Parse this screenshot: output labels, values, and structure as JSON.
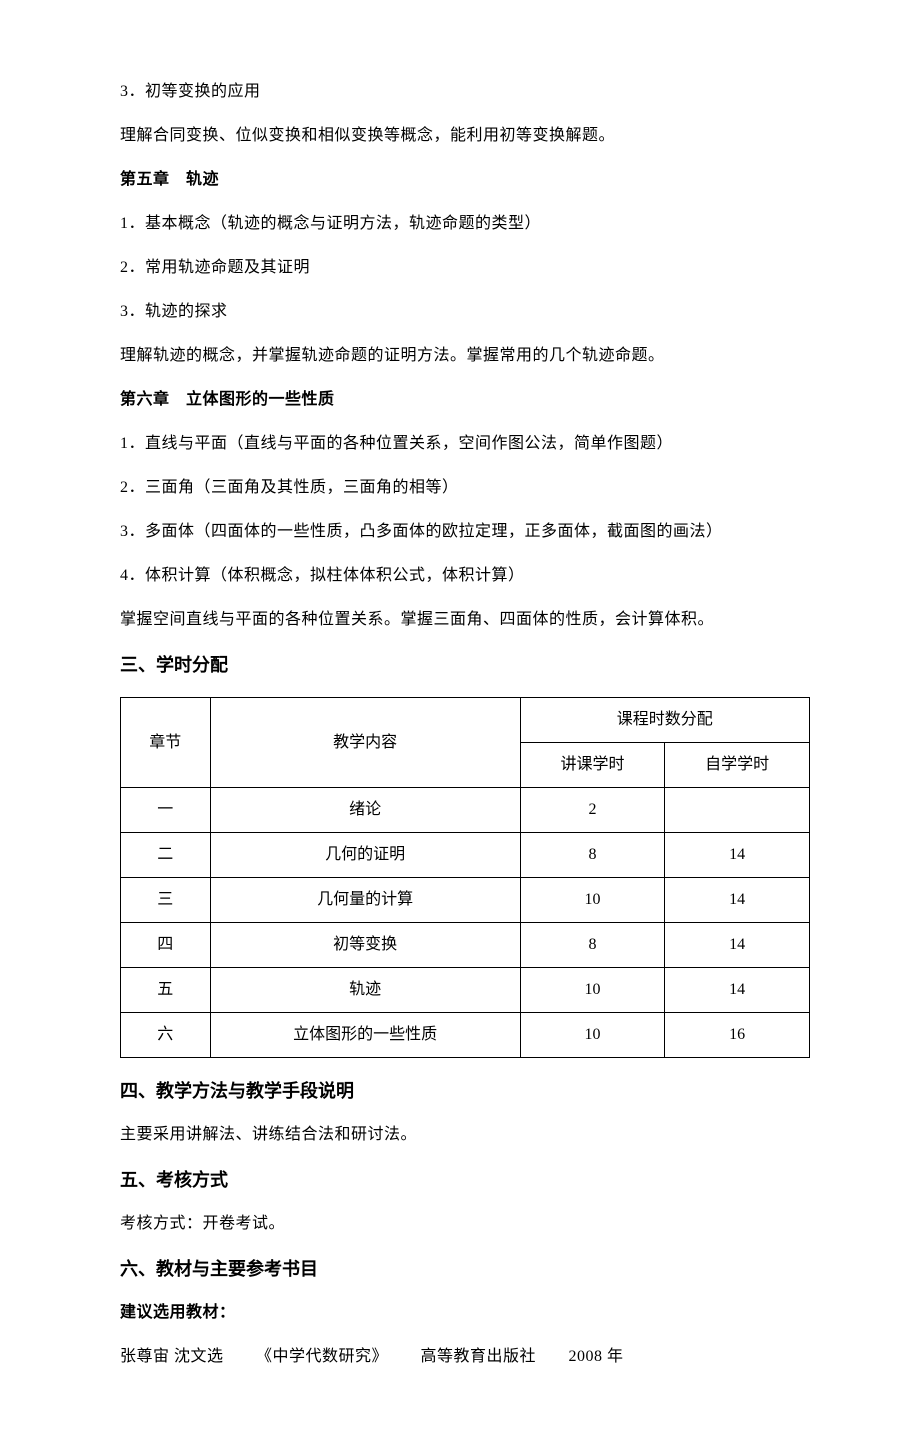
{
  "para": {
    "p1": "3．初等变换的应用",
    "p2": "理解合同变换、位似变换和相似变换等概念，能利用初等变换解题。",
    "ch5_title": "第五章　轨迹",
    "p3": "1．基本概念（轨迹的概念与证明方法，轨迹命题的类型）",
    "p4": "2．常用轨迹命题及其证明",
    "p5": "3．轨迹的探求",
    "p6": "理解轨迹的概念，并掌握轨迹命题的证明方法。掌握常用的几个轨迹命题。",
    "ch6_title": "第六章　立体图形的一些性质",
    "p7": "1．直线与平面（直线与平面的各种位置关系，空间作图公法，简单作图题）",
    "p8": "2．三面角（三面角及其性质，三面角的相等）",
    "p9": "3．多面体（四面体的一些性质，凸多面体的欧拉定理，正多面体，截面图的画法）",
    "p10": "4．体积计算（体积概念，拟柱体体积公式，体积计算）",
    "p11": "掌握空间直线与平面的各种位置关系。掌握三面角、四面体的性质，会计算体积。"
  },
  "sections": {
    "s3": "三、学时分配",
    "s4": "四、教学方法与教学手段说明",
    "s4_body": "主要采用讲解法、讲练结合法和研讨法。",
    "s5": "五、考核方式",
    "s5_body": "考核方式：开卷考试。",
    "s6": "六、教材与主要参考书目",
    "s6_sub": "建议选用教材：",
    "s6_ref": {
      "author": "张尊宙  沈文选",
      "title": "《中学代数研究》",
      "publisher": "高等教育出版社",
      "year": "2008 年"
    }
  },
  "table": {
    "headers": {
      "chapter": "章节",
      "content": "教学内容",
      "hours_group": "课程时数分配",
      "lecture": "讲课学时",
      "self": "自学学时"
    },
    "rows": [
      {
        "chapter": "一",
        "content": "绪论",
        "lecture": "2",
        "self": ""
      },
      {
        "chapter": "二",
        "content": "几何的证明",
        "lecture": "8",
        "self": "14"
      },
      {
        "chapter": "三",
        "content": "几何量的计算",
        "lecture": "10",
        "self": "14"
      },
      {
        "chapter": "四",
        "content": "初等变换",
        "lecture": "8",
        "self": "14"
      },
      {
        "chapter": "五",
        "content": "轨迹",
        "lecture": "10",
        "self": "14"
      },
      {
        "chapter": "六",
        "content": "立体图形的一些性质",
        "lecture": "10",
        "self": "16"
      }
    ]
  },
  "colors": {
    "text": "#000000",
    "background": "#ffffff",
    "border": "#000000"
  }
}
